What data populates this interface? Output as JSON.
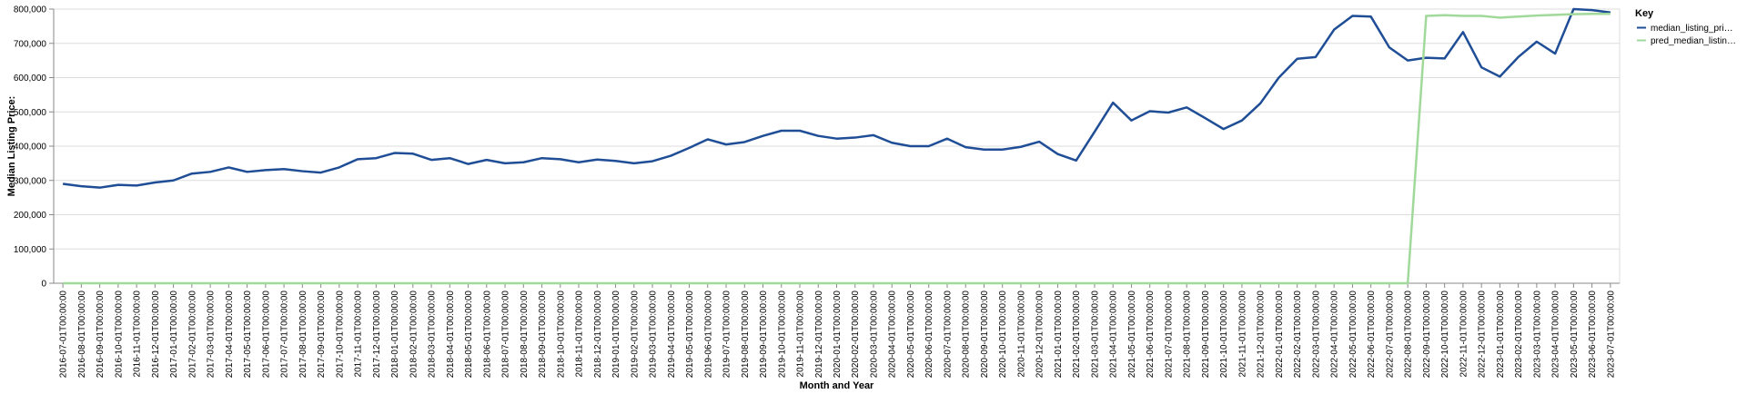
{
  "chart_data": {
    "type": "line",
    "xlabel": "Month and Year",
    "ylabel": "Median Listing Price:",
    "ylim": [
      0,
      800000
    ],
    "y_ticks": [
      "0",
      "100,000",
      "200,000",
      "300,000",
      "400,000",
      "500,000",
      "600,000",
      "700,000",
      "800,000"
    ],
    "grid": true,
    "legend": {
      "title": "Key",
      "placement": "top-right"
    },
    "categories": [
      "2016-07-01T00:00:00",
      "2016-08-01T00:00:00",
      "2016-09-01T00:00:00",
      "2016-10-01T00:00:00",
      "2016-11-01T00:00:00",
      "2016-12-01T00:00:00",
      "2017-01-01T00:00:00",
      "2017-02-01T00:00:00",
      "2017-03-01T00:00:00",
      "2017-04-01T00:00:00",
      "2017-05-01T00:00:00",
      "2017-06-01T00:00:00",
      "2017-07-01T00:00:00",
      "2017-08-01T00:00:00",
      "2017-09-01T00:00:00",
      "2017-10-01T00:00:00",
      "2017-11-01T00:00:00",
      "2017-12-01T00:00:00",
      "2018-01-01T00:00:00",
      "2018-02-01T00:00:00",
      "2018-03-01T00:00:00",
      "2018-04-01T00:00:00",
      "2018-05-01T00:00:00",
      "2018-06-01T00:00:00",
      "2018-07-01T00:00:00",
      "2018-08-01T00:00:00",
      "2018-09-01T00:00:00",
      "2018-10-01T00:00:00",
      "2018-11-01T00:00:00",
      "2018-12-01T00:00:00",
      "2019-01-01T00:00:00",
      "2019-02-01T00:00:00",
      "2019-03-01T00:00:00",
      "2019-04-01T00:00:00",
      "2019-05-01T00:00:00",
      "2019-06-01T00:00:00",
      "2019-07-01T00:00:00",
      "2019-08-01T00:00:00",
      "2019-09-01T00:00:00",
      "2019-10-01T00:00:00",
      "2019-11-01T00:00:00",
      "2019-12-01T00:00:00",
      "2020-01-01T00:00:00",
      "2020-02-01T00:00:00",
      "2020-03-01T00:00:00",
      "2020-04-01T00:00:00",
      "2020-05-01T00:00:00",
      "2020-06-01T00:00:00",
      "2020-07-01T00:00:00",
      "2020-08-01T00:00:00",
      "2020-09-01T00:00:00",
      "2020-10-01T00:00:00",
      "2020-11-01T00:00:00",
      "2020-12-01T00:00:00",
      "2021-01-01T00:00:00",
      "2021-02-01T00:00:00",
      "2021-03-01T00:00:00",
      "2021-04-01T00:00:00",
      "2021-05-01T00:00:00",
      "2021-06-01T00:00:00",
      "2021-07-01T00:00:00",
      "2021-08-01T00:00:00",
      "2021-09-01T00:00:00",
      "2021-10-01T00:00:00",
      "2021-11-01T00:00:00",
      "2021-12-01T00:00:00",
      "2022-01-01T00:00:00",
      "2022-02-01T00:00:00",
      "2022-03-01T00:00:00",
      "2022-04-01T00:00:00",
      "2022-05-01T00:00:00",
      "2022-06-01T00:00:00",
      "2022-07-01T00:00:00",
      "2022-08-01T00:00:00",
      "2022-09-01T00:00:00",
      "2022-10-01T00:00:00",
      "2022-11-01T00:00:00",
      "2022-12-01T00:00:00",
      "2023-01-01T00:00:00",
      "2023-02-01T00:00:00",
      "2023-03-01T00:00:00",
      "2023-04-01T00:00:00",
      "2023-05-01T00:00:00",
      "2023-06-01T00:00:00",
      "2023-07-01T00:00:00"
    ],
    "series": [
      {
        "name": "median_listing_pri…",
        "color": "#1f4e96",
        "values": [
          290000,
          283000,
          279000,
          287000,
          285000,
          294000,
          300000,
          320000,
          325000,
          338000,
          325000,
          330000,
          333000,
          327000,
          323000,
          338000,
          362000,
          365000,
          380000,
          378000,
          360000,
          365000,
          348000,
          360000,
          350000,
          353000,
          365000,
          362000,
          353000,
          361000,
          357000,
          350000,
          356000,
          372000,
          395000,
          420000,
          405000,
          412000,
          430000,
          445000,
          445000,
          430000,
          422000,
          425000,
          432000,
          410000,
          400000,
          400000,
          422000,
          397000,
          390000,
          390000,
          398000,
          413000,
          377000,
          358000,
          442000,
          527000,
          475000,
          502000,
          498000,
          513000,
          482000,
          450000,
          475000,
          525000,
          600000,
          655000,
          660000,
          740000,
          780000,
          778000,
          688000,
          650000,
          658000,
          656000,
          733000,
          630000,
          603000,
          660000,
          705000,
          670000,
          800000,
          797000,
          790000
        ]
      },
      {
        "name": "pred_median_listin…",
        "color": "#a1d99b",
        "values": [
          0,
          0,
          0,
          0,
          0,
          0,
          0,
          0,
          0,
          0,
          0,
          0,
          0,
          0,
          0,
          0,
          0,
          0,
          0,
          0,
          0,
          0,
          0,
          0,
          0,
          0,
          0,
          0,
          0,
          0,
          0,
          0,
          0,
          0,
          0,
          0,
          0,
          0,
          0,
          0,
          0,
          0,
          0,
          0,
          0,
          0,
          0,
          0,
          0,
          0,
          0,
          0,
          0,
          0,
          0,
          0,
          0,
          0,
          0,
          0,
          0,
          0,
          0,
          0,
          0,
          0,
          0,
          0,
          0,
          0,
          0,
          0,
          0,
          0,
          780000,
          782000,
          780000,
          780000,
          775000,
          778000,
          781000,
          783000,
          785000,
          786000,
          786000
        ]
      }
    ]
  }
}
